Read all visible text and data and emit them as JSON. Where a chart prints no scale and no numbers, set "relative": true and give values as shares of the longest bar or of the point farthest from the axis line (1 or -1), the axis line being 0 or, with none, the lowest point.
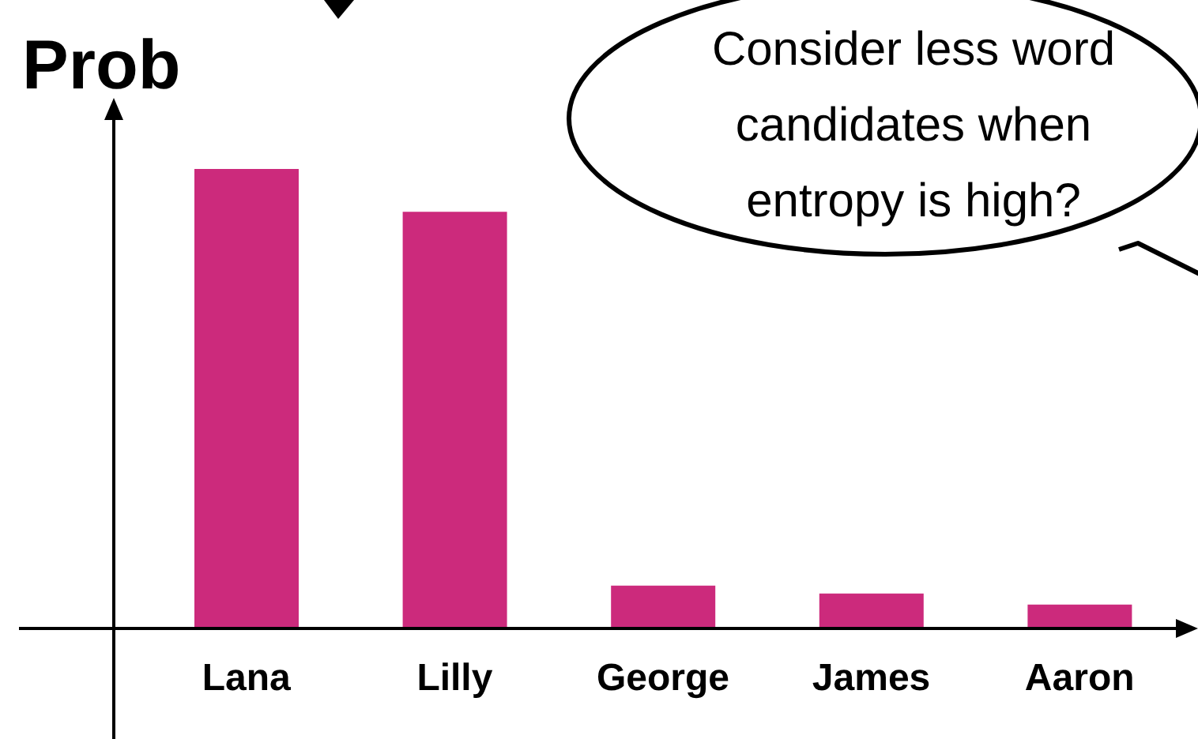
{
  "chart_data": {
    "type": "bar",
    "relative": true,
    "ylabel": "Prob",
    "categories": [
      "Lana",
      "Lilly",
      "George",
      "James",
      "Aaron"
    ],
    "values": [
      1,
      0.907,
      0.093,
      0.076,
      0.052
    ],
    "color": "#cc2a7c",
    "annotations": [
      "Consider less word candidates when entropy is high?"
    ]
  }
}
